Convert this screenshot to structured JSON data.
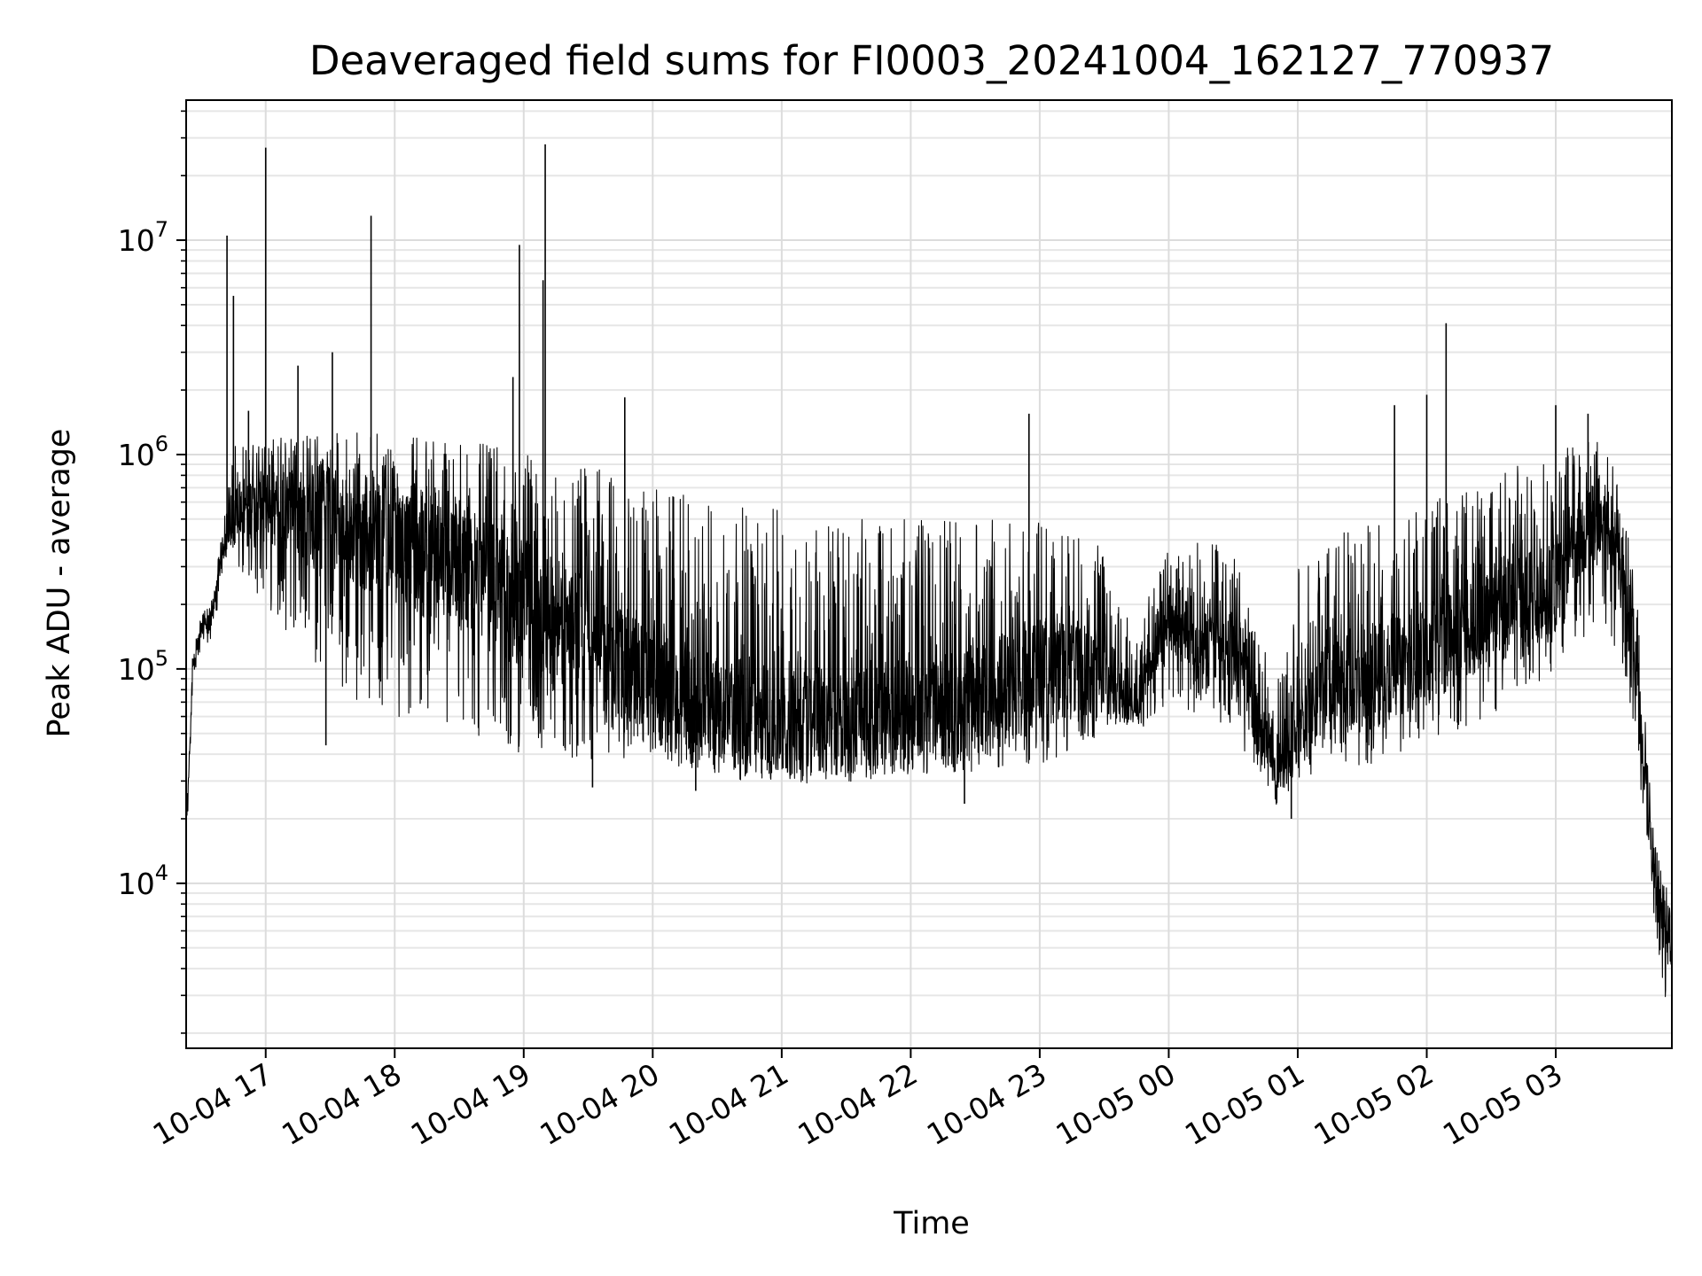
{
  "chart_data": {
    "type": "line",
    "title": "Deaveraged field sums for FI0003_20241004_162127_770937",
    "xlabel": "Time",
    "ylabel": "Peak ADU - average",
    "yscale": "log",
    "ylim": [
      1700,
      45000000
    ],
    "xlim": [
      "2024-10-04 16:23",
      "2024-10-05 03:54"
    ],
    "grid": true,
    "grid_minor": true,
    "line_color": "#000000",
    "y_ticks": [
      {
        "value": 10000,
        "base": "10",
        "exp": "4"
      },
      {
        "value": 100000,
        "base": "10",
        "exp": "5"
      },
      {
        "value": 1000000,
        "base": "10",
        "exp": "6"
      },
      {
        "value": 10000000,
        "base": "10",
        "exp": "7"
      }
    ],
    "x_ticks": [
      {
        "value": "2024-10-04 17:00",
        "label": "10-04 17"
      },
      {
        "value": "2024-10-04 18:00",
        "label": "10-04 18"
      },
      {
        "value": "2024-10-04 19:00",
        "label": "10-04 19"
      },
      {
        "value": "2024-10-04 20:00",
        "label": "10-04 20"
      },
      {
        "value": "2024-10-04 21:00",
        "label": "10-04 21"
      },
      {
        "value": "2024-10-04 22:00",
        "label": "10-04 22"
      },
      {
        "value": "2024-10-04 23:00",
        "label": "10-04 23"
      },
      {
        "value": "2024-10-05 00:00",
        "label": "10-05 00"
      },
      {
        "value": "2024-10-05 01:00",
        "label": "10-05 01"
      },
      {
        "value": "2024-10-05 02:00",
        "label": "10-05 02"
      },
      {
        "value": "2024-10-05 03:00",
        "label": "10-05 03"
      }
    ],
    "envelope": [
      {
        "t": "2024-10-04 16:23",
        "low": 13000,
        "mid": 15000,
        "high": 20000
      },
      {
        "t": "2024-10-04 16:26",
        "low": 80000,
        "mid": 100000,
        "high": 120000
      },
      {
        "t": "2024-10-04 16:30",
        "low": 110000,
        "mid": 150000,
        "high": 180000
      },
      {
        "t": "2024-10-04 16:35",
        "low": 130000,
        "mid": 170000,
        "high": 210000
      },
      {
        "t": "2024-10-04 16:40",
        "low": 280000,
        "mid": 350000,
        "high": 450000
      },
      {
        "t": "2024-10-04 16:45",
        "low": 300000,
        "mid": 550000,
        "high": 1100000
      },
      {
        "t": "2024-10-04 17:00",
        "low": 200000,
        "mid": 600000,
        "high": 1200000
      },
      {
        "t": "2024-10-04 17:30",
        "low": 80000,
        "mid": 500000,
        "high": 1300000
      },
      {
        "t": "2024-10-04 18:00",
        "low": 60000,
        "mid": 400000,
        "high": 1300000
      },
      {
        "t": "2024-10-04 18:30",
        "low": 50000,
        "mid": 300000,
        "high": 1200000
      },
      {
        "t": "2024-10-04 19:00",
        "low": 40000,
        "mid": 200000,
        "high": 1000000
      },
      {
        "t": "2024-10-04 19:30",
        "low": 38000,
        "mid": 130000,
        "high": 900000
      },
      {
        "t": "2024-10-04 20:00",
        "low": 35000,
        "mid": 80000,
        "high": 700000
      },
      {
        "t": "2024-10-04 20:30",
        "low": 32000,
        "mid": 60000,
        "high": 600000
      },
      {
        "t": "2024-10-04 21:00",
        "low": 32000,
        "mid": 55000,
        "high": 550000
      },
      {
        "t": "2024-10-04 21:30",
        "low": 32000,
        "mid": 55000,
        "high": 500000
      },
      {
        "t": "2024-10-04 22:00",
        "low": 32000,
        "mid": 60000,
        "high": 500000
      },
      {
        "t": "2024-10-04 22:30",
        "low": 32000,
        "mid": 70000,
        "high": 500000
      },
      {
        "t": "2024-10-04 23:00",
        "low": 35000,
        "mid": 100000,
        "high": 500000
      },
      {
        "t": "2024-10-04 23:30",
        "low": 50000,
        "mid": 90000,
        "high": 400000
      },
      {
        "t": "2024-10-04 23:45",
        "low": 50000,
        "mid": 70000,
        "high": 150000
      },
      {
        "t": "2024-10-05 00:00",
        "low": 70000,
        "mid": 180000,
        "high": 400000
      },
      {
        "t": "2024-10-05 00:30",
        "low": 50000,
        "mid": 120000,
        "high": 400000
      },
      {
        "t": "2024-10-05 00:50",
        "low": 22000,
        "mid": 30000,
        "high": 80000
      },
      {
        "t": "2024-10-05 01:00",
        "low": 30000,
        "mid": 60000,
        "high": 300000
      },
      {
        "t": "2024-10-05 01:30",
        "low": 35000,
        "mid": 90000,
        "high": 500000
      },
      {
        "t": "2024-10-05 02:00",
        "low": 45000,
        "mid": 120000,
        "high": 600000
      },
      {
        "t": "2024-10-05 02:30",
        "low": 60000,
        "mid": 180000,
        "high": 800000
      },
      {
        "t": "2024-10-05 03:00",
        "low": 100000,
        "mid": 250000,
        "high": 1100000
      },
      {
        "t": "2024-10-05 03:20",
        "low": 150000,
        "mid": 500000,
        "high": 1400000
      },
      {
        "t": "2024-10-05 03:30",
        "low": 120000,
        "mid": 350000,
        "high": 800000
      },
      {
        "t": "2024-10-05 03:38",
        "low": 40000,
        "mid": 80000,
        "high": 200000
      },
      {
        "t": "2024-10-05 03:45",
        "low": 7000,
        "mid": 12000,
        "high": 20000
      },
      {
        "t": "2024-10-05 03:50",
        "low": 3000,
        "mid": 6000,
        "high": 10000
      },
      {
        "t": "2024-10-05 03:54",
        "low": 2800,
        "mid": 5000,
        "high": 9000
      }
    ],
    "spikes": [
      {
        "t": "2024-10-04 16:42",
        "v": 10500000
      },
      {
        "t": "2024-10-04 16:45",
        "v": 5500000
      },
      {
        "t": "2024-10-04 16:52",
        "v": 1600000
      },
      {
        "t": "2024-10-04 17:00",
        "v": 27000000
      },
      {
        "t": "2024-10-04 17:15",
        "v": 2600000
      },
      {
        "t": "2024-10-04 17:31",
        "v": 3000000
      },
      {
        "t": "2024-10-04 17:49",
        "v": 13000000
      },
      {
        "t": "2024-10-04 18:58",
        "v": 9500000
      },
      {
        "t": "2024-10-04 19:10",
        "v": 28000000
      },
      {
        "t": "2024-10-04 19:09",
        "v": 6500000
      },
      {
        "t": "2024-10-04 18:55",
        "v": 2300000
      },
      {
        "t": "2024-10-04 19:47",
        "v": 1850000
      },
      {
        "t": "2024-10-04 22:55",
        "v": 1550000
      },
      {
        "t": "2024-10-05 01:45",
        "v": 1700000
      },
      {
        "t": "2024-10-05 02:00",
        "v": 1900000
      },
      {
        "t": "2024-10-05 02:09",
        "v": 4100000
      },
      {
        "t": "2024-10-05 03:00",
        "v": 1700000
      },
      {
        "t": "2024-10-05 03:15",
        "v": 1550000
      }
    ],
    "dips": [
      {
        "t": "2024-10-04 17:28",
        "v": 44000
      },
      {
        "t": "2024-10-04 19:32",
        "v": 28000
      },
      {
        "t": "2024-10-04 20:20",
        "v": 27000
      },
      {
        "t": "2024-10-04 22:25",
        "v": 23500
      },
      {
        "t": "2024-10-05 00:57",
        "v": 20000
      }
    ]
  }
}
